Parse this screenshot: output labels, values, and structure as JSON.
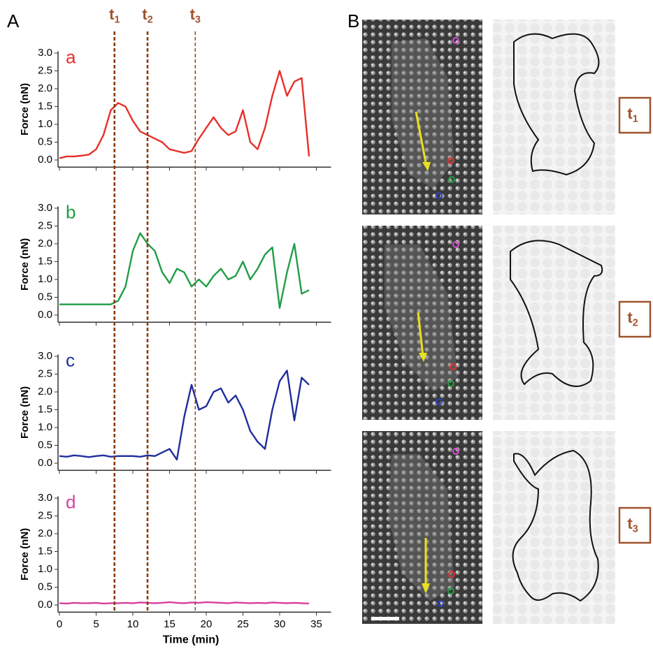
{
  "panel_labels": [
    "A",
    "B"
  ],
  "markers": [
    {
      "label": "t",
      "subscript": "1",
      "x": 7.5
    },
    {
      "label": "t",
      "subscript": "2",
      "x": 12
    },
    {
      "label": "t",
      "subscript": "3",
      "x": 18.5
    }
  ],
  "chart_data": [
    {
      "type": "line",
      "panel_label": "a",
      "color": "#e8302a",
      "ylabel": "Force (nN)",
      "x": [
        0,
        1,
        2,
        3,
        4,
        5,
        6,
        7,
        8,
        9,
        10,
        11,
        12,
        13,
        14,
        15,
        16,
        17,
        18,
        19,
        20,
        21,
        22,
        23,
        24,
        25,
        26,
        27,
        28,
        29,
        30,
        31,
        32,
        33,
        34
      ],
      "values": [
        0.05,
        0.1,
        0.1,
        0.12,
        0.15,
        0.3,
        0.7,
        1.4,
        1.6,
        1.5,
        1.1,
        0.8,
        0.7,
        0.6,
        0.5,
        0.3,
        0.25,
        0.2,
        0.25,
        0.6,
        0.9,
        1.2,
        0.9,
        0.7,
        0.8,
        1.4,
        0.5,
        0.3,
        0.9,
        1.8,
        2.5,
        1.8,
        2.2,
        2.3,
        0.1
      ],
      "xlim": [
        0,
        37
      ],
      "xticks": [
        0,
        5,
        10,
        15,
        20,
        25,
        30,
        35
      ],
      "ylim": [
        -0.2,
        3.05
      ],
      "yticks": [
        {
          "value": 0,
          "label": "0.0"
        },
        {
          "value": 0.5,
          "label": "0.5"
        },
        {
          "value": 1,
          "label": "1.0"
        },
        {
          "value": 1.5,
          "label": "1.5"
        },
        {
          "value": 2,
          "label": "2.0"
        },
        {
          "value": 2.5,
          "label": "2.5"
        },
        {
          "value": 3,
          "label": "3.0"
        }
      ]
    },
    {
      "type": "line",
      "panel_label": "b",
      "color": "#1f9e45",
      "ylabel": "Force (nN)",
      "x": [
        0,
        1,
        2,
        3,
        4,
        5,
        6,
        7,
        8,
        9,
        10,
        11,
        12,
        13,
        14,
        15,
        16,
        17,
        18,
        19,
        20,
        21,
        22,
        23,
        24,
        25,
        26,
        27,
        28,
        29,
        30,
        31,
        32,
        33,
        34
      ],
      "values": [
        0.3,
        0.3,
        0.3,
        0.3,
        0.3,
        0.3,
        0.3,
        0.3,
        0.4,
        0.8,
        1.8,
        2.3,
        2.0,
        1.8,
        1.2,
        0.9,
        1.3,
        1.2,
        0.8,
        1.0,
        0.8,
        1.1,
        1.3,
        1.0,
        1.1,
        1.5,
        1.0,
        1.3,
        1.7,
        1.9,
        0.2,
        1.2,
        2.0,
        0.6,
        0.7
      ],
      "xlim": [
        0,
        37
      ],
      "xticks": [
        0,
        5,
        10,
        15,
        20,
        25,
        30,
        35
      ],
      "ylim": [
        -0.2,
        3.05
      ],
      "yticks": [
        {
          "value": 0,
          "label": "0.0"
        },
        {
          "value": 0.5,
          "label": "0.5"
        },
        {
          "value": 1,
          "label": "1.0"
        },
        {
          "value": 1.5,
          "label": "1.5"
        },
        {
          "value": 2,
          "label": "2.0"
        },
        {
          "value": 2.5,
          "label": "2.5"
        },
        {
          "value": 3,
          "label": "3.0"
        }
      ]
    },
    {
      "type": "line",
      "panel_label": "c",
      "color": "#1f2e9e",
      "ylabel": "Force (nN)",
      "x": [
        0,
        1,
        2,
        3,
        4,
        5,
        6,
        7,
        8,
        9,
        10,
        11,
        12,
        13,
        14,
        15,
        16,
        17,
        18,
        19,
        20,
        21,
        22,
        23,
        24,
        25,
        26,
        27,
        28,
        29,
        30,
        31,
        32,
        33,
        34
      ],
      "values": [
        0.2,
        0.18,
        0.22,
        0.2,
        0.17,
        0.2,
        0.22,
        0.18,
        0.2,
        0.2,
        0.2,
        0.18,
        0.22,
        0.2,
        0.3,
        0.4,
        0.1,
        1.3,
        2.2,
        1.5,
        1.6,
        2.0,
        2.1,
        1.7,
        1.9,
        1.5,
        0.9,
        0.6,
        0.4,
        1.5,
        2.3,
        2.6,
        1.2,
        2.4,
        2.2
      ],
      "xlim": [
        0,
        37
      ],
      "xticks": [
        0,
        5,
        10,
        15,
        20,
        25,
        30,
        35
      ],
      "ylim": [
        -0.2,
        3.05
      ],
      "yticks": [
        {
          "value": 0,
          "label": "0.0"
        },
        {
          "value": 0.5,
          "label": "0.5"
        },
        {
          "value": 1,
          "label": "1.0"
        },
        {
          "value": 1.5,
          "label": "1.5"
        },
        {
          "value": 2,
          "label": "2.0"
        },
        {
          "value": 2.5,
          "label": "2.5"
        },
        {
          "value": 3,
          "label": "3.0"
        }
      ]
    },
    {
      "type": "line",
      "panel_label": "d",
      "color": "#d6409f",
      "ylabel": "Force (nN)",
      "xlabel": "Time (min)",
      "x": [
        0,
        1,
        2,
        3,
        4,
        5,
        6,
        7,
        8,
        9,
        10,
        11,
        12,
        13,
        14,
        15,
        16,
        17,
        18,
        19,
        20,
        21,
        22,
        23,
        24,
        25,
        26,
        27,
        28,
        29,
        30,
        31,
        32,
        33,
        34
      ],
      "values": [
        0.05,
        0.04,
        0.06,
        0.05,
        0.05,
        0.06,
        0.04,
        0.05,
        0.05,
        0.06,
        0.05,
        0.07,
        0.06,
        0.05,
        0.06,
        0.08,
        0.06,
        0.05,
        0.07,
        0.06,
        0.08,
        0.07,
        0.06,
        0.05,
        0.07,
        0.06,
        0.05,
        0.06,
        0.05,
        0.07,
        0.06,
        0.05,
        0.06,
        0.05,
        0.04
      ],
      "xlim": [
        0,
        37
      ],
      "xticks": [
        0,
        5,
        10,
        15,
        20,
        25,
        30,
        35
      ],
      "ylim": [
        -0.2,
        3.05
      ],
      "yticks": [
        {
          "value": 0,
          "label": "0.0"
        },
        {
          "value": 0.5,
          "label": "0.5"
        },
        {
          "value": 1,
          "label": "1.0"
        },
        {
          "value": 1.5,
          "label": "1.5"
        },
        {
          "value": 2,
          "label": "2.0"
        },
        {
          "value": 2.5,
          "label": "2.5"
        },
        {
          "value": 3,
          "label": "3.0"
        }
      ]
    }
  ]
}
